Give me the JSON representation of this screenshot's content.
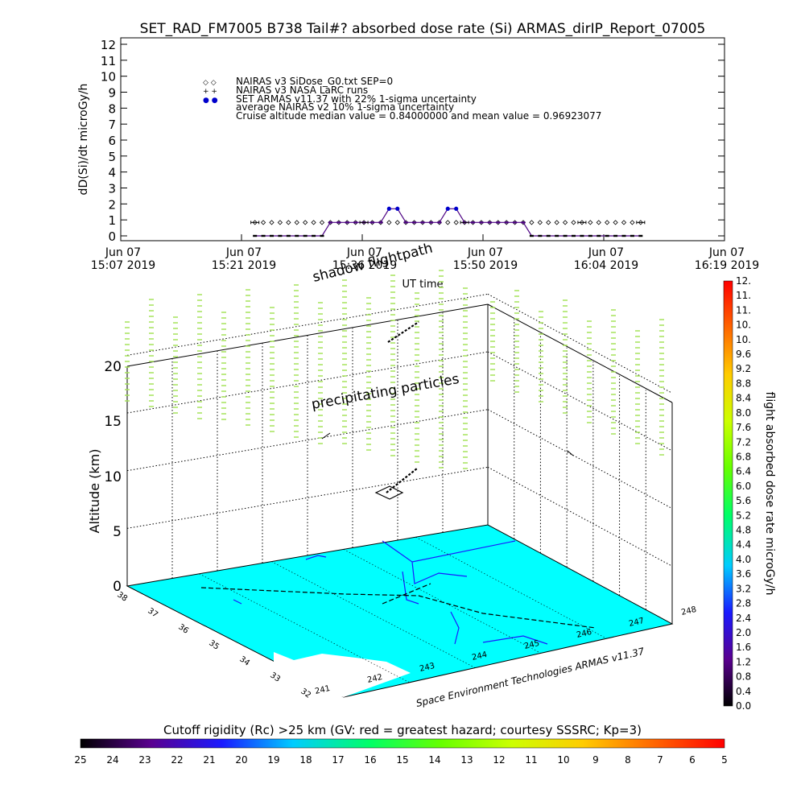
{
  "colors": {
    "nairas_v3": "#000000",
    "armas_series": "#0000cc",
    "armas_line": "#4b0082",
    "precip": "#a6e35a",
    "map_land": "#00ffff",
    "coast": "#1a1aff",
    "grid": "#000000"
  },
  "top_chart": {
    "type": "scatter",
    "title": "SET_RAD_FM7005  B738 Tail#? absorbed dose rate (Si) ARMAS_dirIP_Report_07005",
    "ylabel": "dD(Si)/dt microGy/h",
    "xlabel": "UT time",
    "ylim": [
      0,
      12
    ],
    "yticks": [
      "0",
      "1",
      "2",
      "3",
      "4",
      "5",
      "6",
      "7",
      "8",
      "9",
      "10",
      "11",
      "12"
    ],
    "xticks": [
      {
        "date": "Jun 07",
        "time": "15:07 2019"
      },
      {
        "date": "Jun 07",
        "time": "15:21 2019"
      },
      {
        "date": "Jun 07",
        "time": "15:36 2019"
      },
      {
        "date": "Jun 07",
        "time": "15:50 2019"
      },
      {
        "date": "Jun 07",
        "time": "16:04 2019"
      },
      {
        "date": "Jun 07",
        "time": "16:19 2019"
      }
    ],
    "legend": [
      {
        "symbol": "◇ ◇",
        "text": "NAIRAS v3 SiDose_G0.txt SEP=0"
      },
      {
        "symbol": "+ +",
        "text": "NAIRAS v3 NASA LaRC runs"
      },
      {
        "symbol": "● ●",
        "text": "SET ARMAS v11.37 with 22% 1-sigma uncertainty"
      },
      {
        "symbol": "",
        "text": "average NAIRAS v2 10% 1-sigma uncertainty"
      },
      {
        "symbol": "",
        "text": "Cruise altitude median value = 0.84000000 and mean value = 0.96923077"
      }
    ]
  },
  "chart_data": [
    {
      "type": "scatter",
      "title": "SET_RAD_FM7005  B738 Tail#? absorbed dose rate (Si) ARMAS_dirIP_Report_07005",
      "xlabel": "UT time",
      "ylabel": "dD(Si)/dt microGy/h",
      "ylim": [
        0,
        12
      ],
      "xlim": [
        "15:07",
        "16:19"
      ],
      "series": [
        {
          "name": "NAIRAS v3 SiDose_G0.txt SEP=0",
          "points": [
            [
              "15:23",
              0.84
            ],
            [
              "15:24",
              0.84
            ],
            [
              "15:25",
              0.84
            ],
            [
              "15:26",
              0.84
            ],
            [
              "15:27",
              0.84
            ],
            [
              "15:28",
              0.84
            ],
            [
              "15:29",
              0.84
            ],
            [
              "15:30",
              0.84
            ],
            [
              "15:31",
              0.84
            ],
            [
              "15:32",
              0.84
            ],
            [
              "15:33",
              0.84
            ],
            [
              "15:34",
              0.84
            ],
            [
              "15:35",
              0.84
            ],
            [
              "15:36",
              0.84
            ],
            [
              "15:37",
              0.84
            ],
            [
              "15:38",
              0.84
            ],
            [
              "15:39",
              0.84
            ],
            [
              "15:40",
              0.84
            ],
            [
              "15:41",
              0.84
            ],
            [
              "15:42",
              0.84
            ],
            [
              "15:43",
              0.84
            ],
            [
              "15:44",
              0.84
            ],
            [
              "15:45",
              0.84
            ],
            [
              "15:46",
              0.84
            ],
            [
              "15:47",
              0.84
            ],
            [
              "15:48",
              0.84
            ],
            [
              "15:49",
              0.84
            ],
            [
              "15:50",
              0.84
            ],
            [
              "15:51",
              0.84
            ],
            [
              "15:52",
              0.84
            ],
            [
              "15:53",
              0.84
            ],
            [
              "15:54",
              0.84
            ],
            [
              "15:55",
              0.84
            ],
            [
              "15:56",
              0.84
            ],
            [
              "15:57",
              0.84
            ],
            [
              "15:58",
              0.84
            ],
            [
              "15:59",
              0.84
            ],
            [
              "16:00",
              0.84
            ],
            [
              "16:01",
              0.84
            ],
            [
              "16:02",
              0.84
            ],
            [
              "16:03",
              0.84
            ],
            [
              "16:04",
              0.84
            ],
            [
              "16:05",
              0.84
            ],
            [
              "16:06",
              0.84
            ],
            [
              "16:07",
              0.84
            ],
            [
              "16:08",
              0.84
            ],
            [
              "16:09",
              0.84
            ]
          ]
        },
        {
          "name": "SET ARMAS v11.37 with 22% 1-sigma uncertainty",
          "points": [
            [
              "15:23",
              0.0
            ],
            [
              "15:24",
              0.0
            ],
            [
              "15:25",
              0.0
            ],
            [
              "15:26",
              0.0
            ],
            [
              "15:27",
              0.0
            ],
            [
              "15:28",
              0.0
            ],
            [
              "15:29",
              0.0
            ],
            [
              "15:30",
              0.0
            ],
            [
              "15:31",
              0.0
            ],
            [
              "15:32",
              0.84
            ],
            [
              "15:33",
              0.84
            ],
            [
              "15:34",
              0.84
            ],
            [
              "15:35",
              0.84
            ],
            [
              "15:36",
              0.84
            ],
            [
              "15:37",
              0.84
            ],
            [
              "15:38",
              0.84
            ],
            [
              "15:39",
              1.7
            ],
            [
              "15:40",
              1.7
            ],
            [
              "15:41",
              0.84
            ],
            [
              "15:42",
              0.84
            ],
            [
              "15:43",
              0.84
            ],
            [
              "15:44",
              0.84
            ],
            [
              "15:45",
              0.84
            ],
            [
              "15:46",
              1.7
            ],
            [
              "15:47",
              1.7
            ],
            [
              "15:48",
              0.84
            ],
            [
              "15:49",
              0.84
            ],
            [
              "15:50",
              0.84
            ],
            [
              "15:51",
              0.84
            ],
            [
              "15:52",
              0.84
            ],
            [
              "15:53",
              0.84
            ],
            [
              "15:54",
              0.84
            ],
            [
              "15:55",
              0.84
            ],
            [
              "15:56",
              0.0
            ],
            [
              "15:57",
              0.0
            ],
            [
              "15:58",
              0.0
            ],
            [
              "15:59",
              0.0
            ],
            [
              "16:00",
              0.0
            ],
            [
              "16:01",
              0.0
            ],
            [
              "16:02",
              0.0
            ],
            [
              "16:03",
              0.0
            ],
            [
              "16:04",
              0.0
            ],
            [
              "16:05",
              0.0
            ],
            [
              "16:06",
              0.0
            ],
            [
              "16:07",
              0.0
            ],
            [
              "16:08",
              0.0
            ],
            [
              "16:09",
              0.0
            ]
          ]
        }
      ],
      "error_bars_x": [
        "15:23",
        "15:36",
        "15:48",
        "16:02",
        "16:09"
      ]
    },
    {
      "type": "scatter",
      "subtype": "3d-flightpath",
      "ylabel": "Altitude (km)",
      "zticks": [
        "0",
        "5",
        "10",
        "15",
        "20"
      ],
      "lat_ticks": [
        "38",
        "37",
        "36",
        "35",
        "34",
        "33",
        "32"
      ],
      "lon_ticks": [
        "241",
        "242",
        "243",
        "244",
        "245",
        "246",
        "247",
        "248"
      ],
      "annotations": [
        "shadow flightpath",
        "precipitating particles"
      ],
      "credit": "Space Environment Technologies ARMAS v11.37"
    }
  ],
  "right_colorbar": {
    "label": "flight absorbed dose rate microGy/h",
    "ticks": [
      "0.0",
      "0.4",
      "0.8",
      "1.2",
      "1.6",
      "2.0",
      "2.4",
      "2.8",
      "3.2",
      "3.6",
      "4.0",
      "4.4",
      "4.8",
      "5.2",
      "5.6",
      "6.0",
      "6.4",
      "6.8",
      "7.2",
      "7.6",
      "8.0",
      "8.4",
      "8.8",
      "9.2",
      "9.6",
      "10.",
      "10.",
      "11.",
      "11.",
      "12."
    ],
    "stops": [
      "#000000",
      "#5a0090",
      "#1a1aff",
      "#00ccff",
      "#00ff66",
      "#66ff00",
      "#ccff00",
      "#ffcc00",
      "#ff6600",
      "#ff0000"
    ]
  },
  "bottom_colorbar": {
    "label": "Cutoff rigidity (Rc) >25 km (GV: red = greatest hazard; courtesy SSSRC; Kp=3)",
    "ticks": [
      "25",
      "24",
      "23",
      "22",
      "21",
      "20",
      "19",
      "18",
      "17",
      "16",
      "15",
      "14",
      "13",
      "12",
      "11",
      "10",
      "9",
      "8",
      "7",
      "6",
      "5"
    ],
    "stops": [
      "#000000",
      "#5a0090",
      "#1a1aff",
      "#00ccff",
      "#00ff66",
      "#66ff00",
      "#ccff00",
      "#ffcc00",
      "#ff6600",
      "#ff0000"
    ]
  }
}
